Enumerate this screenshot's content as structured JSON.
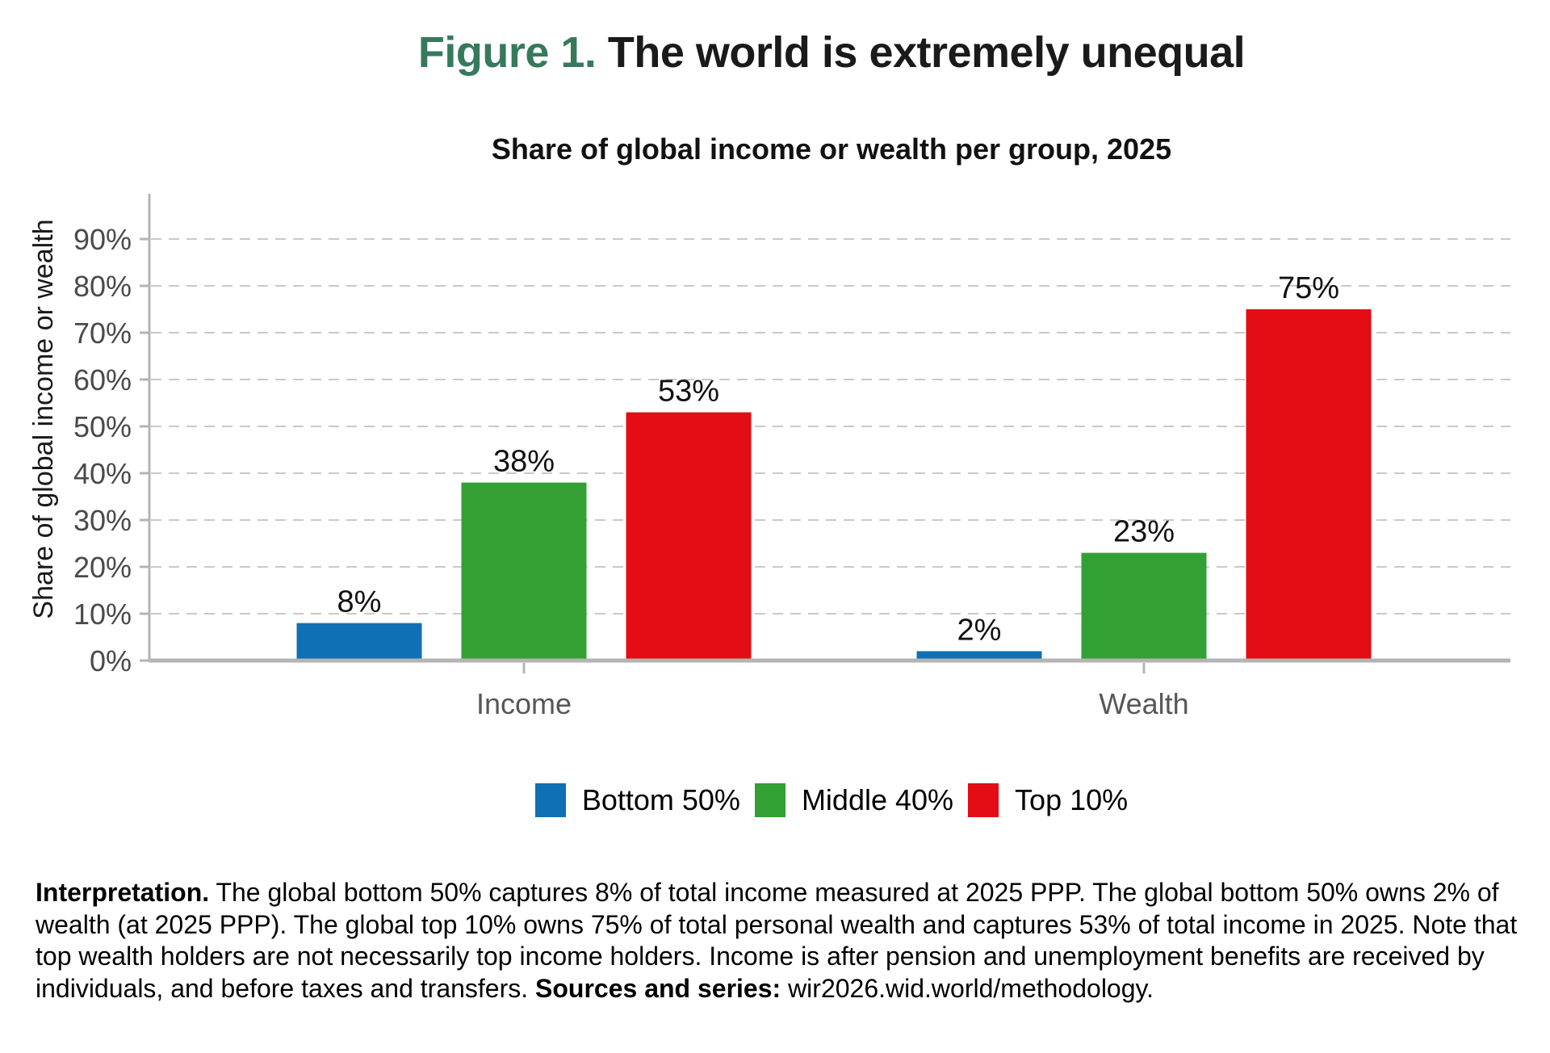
{
  "page": {
    "title_prefix": "Figure 1.",
    "title_rest": " The world is extremely unequal",
    "accent_color": "#36795B"
  },
  "chart_data": {
    "type": "bar",
    "title": "Share of global income or wealth per group, 2025",
    "ylabel": "Share of global income or wealth",
    "xlabel": "",
    "categories": [
      "Income",
      "Wealth"
    ],
    "series": [
      {
        "name": "Bottom 50%",
        "color": "#0F70B5",
        "values": [
          8,
          2
        ]
      },
      {
        "name": "Middle 40%",
        "color": "#33A033",
        "values": [
          38,
          23
        ]
      },
      {
        "name": "Top 10%",
        "color": "#E40D15",
        "values": [
          53,
          75
        ]
      }
    ],
    "value_suffix": "%",
    "ylim": [
      0,
      100
    ],
    "yticks": [
      0,
      10,
      20,
      30,
      40,
      50,
      60,
      70,
      80,
      90
    ],
    "grid": "horizontal-dashed",
    "legend_position": "bottom-center",
    "axis_color": "#B4B4B4",
    "grid_color": "#C9C9C9",
    "tick_label_color": "#4A4A4A",
    "category_label_color": "#575757",
    "value_label_color": "#111111"
  },
  "notes": {
    "lead_label": "Interpretation.",
    "body": " The global bottom 50% captures 8% of total income measured at 2025 PPP. The global bottom 50% owns 2% of wealth (at 2025 PPP). The global top 10% owns 75% of total personal wealth and captures 53% of total income in 2025. Note that top wealth holders are not necessarily top income holders. Income is after pension and unemployment benefits are received by individuals, and before taxes and transfers. ",
    "sources_label": "Sources and series:",
    "sources_body": " wir2026.wid.world/methodology."
  }
}
